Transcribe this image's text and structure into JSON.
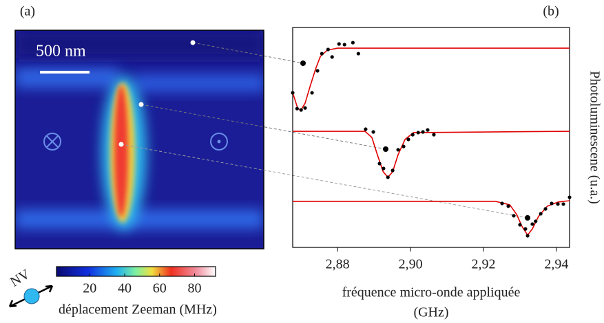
{
  "chart_data": [
    {
      "type": "heatmap",
      "panel_label": "(a)",
      "scale_bar": "500 nm",
      "annotation": "NV",
      "colorbar_label": "déplacement Zeeman (MHz)",
      "clim": [
        1,
        92
      ],
      "cticks": [
        20,
        40,
        60,
        80
      ]
    },
    {
      "type": "scatter",
      "panel_label": "(b)",
      "xlabel": [
        "fréquence micro-onde appliquée",
        "(GHz)"
      ],
      "ylabel": "Photoluminescene (u.a.)",
      "xlim": [
        2.8677,
        2.9436
      ],
      "ylim": [
        0,
        1
      ],
      "xticks": [
        {
          "value": 2.88,
          "label": "2,88"
        },
        {
          "value": 2.9,
          "label": "2,90"
        },
        {
          "value": 2.92,
          "label": "2,92"
        },
        {
          "value": 2.94,
          "label": "2,94"
        }
      ],
      "series": [
        {
          "mode": "line",
          "color": "#e00000",
          "x": [
            2.8677,
            2.8691,
            2.87,
            2.8711,
            2.8725,
            2.874,
            2.8753,
            2.8772,
            2.88,
            2.9436
          ],
          "values": [
            0.703,
            0.631,
            0.625,
            0.656,
            0.734,
            0.8125,
            0.869,
            0.897,
            0.906,
            0.906
          ]
        },
        {
          "mode": "line",
          "color": "#e00000",
          "x": [
            2.8677,
            2.8875,
            2.8894,
            2.8909,
            2.8925,
            2.8938,
            2.8951,
            2.8966,
            2.8985,
            2.9008,
            2.9436
          ],
          "values": [
            0.528,
            0.528,
            0.5,
            0.422,
            0.344,
            0.319,
            0.344,
            0.422,
            0.491,
            0.522,
            0.528
          ]
        },
        {
          "mode": "line",
          "color": "#e00000",
          "x": [
            2.8677,
            2.9234,
            2.9272,
            2.9291,
            2.9306,
            2.9321,
            2.9334,
            2.9351,
            2.9375,
            2.9404,
            2.9436
          ],
          "values": [
            0.209,
            0.209,
            0.194,
            0.15,
            0.094,
            0.056,
            0.084,
            0.141,
            0.1875,
            0.206,
            0.2125
          ]
        },
        {
          "mode": "markers",
          "color": "#000000",
          "x": [
            2.8677,
            2.8689,
            2.87,
            2.8711,
            2.873,
            2.8745,
            2.8757,
            2.8774,
            2.8785,
            2.8804,
            2.8819,
            2.8842,
            2.8857
          ],
          "values": [
            0.703,
            0.631,
            0.625,
            0.634,
            0.703,
            0.803,
            0.881,
            0.9,
            0.866,
            0.925,
            0.922,
            0.931,
            0.881
          ]
        },
        {
          "mode": "markers",
          "color": "#000000",
          "x": [
            2.8877,
            2.8898,
            2.8915,
            2.8926,
            2.8938,
            2.8951,
            2.8966,
            2.8981,
            2.8994,
            2.9006,
            2.9021,
            2.9034,
            2.9047,
            2.9064
          ],
          "values": [
            0.5375,
            0.525,
            0.381,
            0.359,
            0.319,
            0.35,
            0.444,
            0.459,
            0.491,
            0.5125,
            0.522,
            0.525,
            0.534,
            0.5125
          ]
        },
        {
          "mode": "markers",
          "color": "#000000",
          "x": [
            2.9251,
            2.9268,
            2.9283,
            2.93,
            2.9315,
            2.9321,
            2.9334,
            2.9343,
            2.9357,
            2.937,
            2.9387,
            2.9404,
            2.9419,
            2.9436
          ],
          "values": [
            0.2,
            0.1875,
            0.144,
            0.103,
            0.084,
            0.053,
            0.106,
            0.119,
            0.153,
            0.175,
            0.2,
            0.197,
            0.197,
            0.228
          ]
        }
      ]
    }
  ]
}
